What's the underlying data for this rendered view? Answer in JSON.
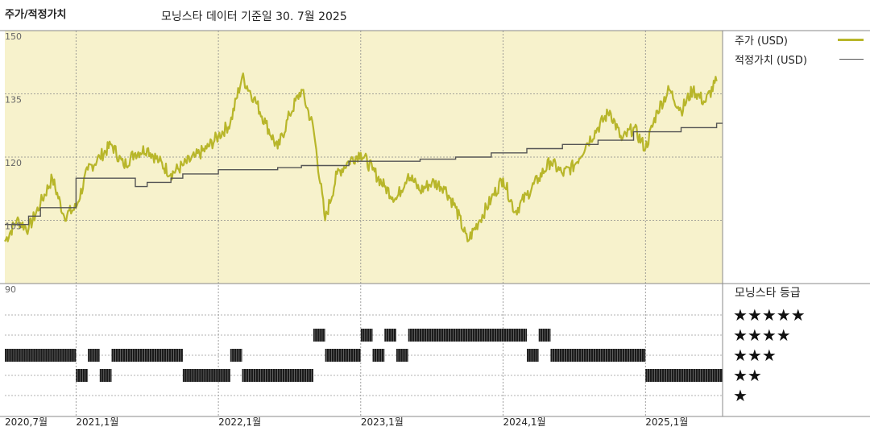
{
  "header": {
    "title": "주가/적정가치",
    "subtitle": "모닝스타 데이터 기준일 30. 7월 2025"
  },
  "legend": {
    "price_label": "주가 (USD)",
    "fair_value_label": "적정가치 (USD)",
    "rating_title": "모닝스타 등급"
  },
  "rating_levels": [
    "★★★★★",
    "★★★★",
    "★★★",
    "★★",
    "★"
  ],
  "colors": {
    "price_line": "#b8b62a",
    "fair_value_line": "#555555",
    "plot_background": "#f7f2cc",
    "rating_bars": "#1a1a1a"
  },
  "chart_data": {
    "type": "line",
    "y_ticks": [
      "150",
      "135",
      "120",
      "105",
      "90"
    ],
    "ylim": [
      90,
      150
    ],
    "x_ticks": [
      "2020,7월",
      "2021,1월",
      "2022,1월",
      "2023,1월",
      "2024,1월",
      "2025,1월"
    ],
    "x_range": [
      "2020-07",
      "2025-07"
    ],
    "series": [
      {
        "name": "주가 (USD)",
        "points": [
          [
            "2020-07",
            100
          ],
          [
            "2020-08",
            105
          ],
          [
            "2020-09",
            103
          ],
          [
            "2020-10",
            109
          ],
          [
            "2020-11",
            115
          ],
          [
            "2020-12",
            106
          ],
          [
            "2021-01",
            108
          ],
          [
            "2021-02",
            117
          ],
          [
            "2021-03",
            120
          ],
          [
            "2021-04",
            123
          ],
          [
            "2021-05",
            118
          ],
          [
            "2021-06",
            121
          ],
          [
            "2021-07",
            122
          ],
          [
            "2021-08",
            119
          ],
          [
            "2021-09",
            116
          ],
          [
            "2021-10",
            118
          ],
          [
            "2021-11",
            120
          ],
          [
            "2021-12",
            122
          ],
          [
            "2022-01",
            125
          ],
          [
            "2022-02",
            128
          ],
          [
            "2022-03",
            139
          ],
          [
            "2022-04",
            134
          ],
          [
            "2022-05",
            128
          ],
          [
            "2022-06",
            122
          ],
          [
            "2022-07",
            130
          ],
          [
            "2022-08",
            136
          ],
          [
            "2022-09",
            127
          ],
          [
            "2022-10",
            105
          ],
          [
            "2022-11",
            116
          ],
          [
            "2022-12",
            119
          ],
          [
            "2023-01",
            121
          ],
          [
            "2023-02",
            117
          ],
          [
            "2023-03",
            113
          ],
          [
            "2023-04",
            110
          ],
          [
            "2023-05",
            116
          ],
          [
            "2023-06",
            112
          ],
          [
            "2023-07",
            114
          ],
          [
            "2023-08",
            113
          ],
          [
            "2023-09",
            108
          ],
          [
            "2023-10",
            100
          ],
          [
            "2023-11",
            105
          ],
          [
            "2023-12",
            110
          ],
          [
            "2024-01",
            115
          ],
          [
            "2024-02",
            107
          ],
          [
            "2024-03",
            111
          ],
          [
            "2024-04",
            115
          ],
          [
            "2024-05",
            119
          ],
          [
            "2024-06",
            116
          ],
          [
            "2024-07",
            118
          ],
          [
            "2024-08",
            123
          ],
          [
            "2024-09",
            127
          ],
          [
            "2024-10",
            131
          ],
          [
            "2024-11",
            124
          ],
          [
            "2024-12",
            127
          ],
          [
            "2025-01",
            122
          ],
          [
            "2025-02",
            131
          ],
          [
            "2025-03",
            136
          ],
          [
            "2025-04",
            131
          ],
          [
            "2025-05",
            136
          ],
          [
            "2025-06",
            133
          ],
          [
            "2025-07",
            138
          ]
        ]
      },
      {
        "name": "적정가치 (USD)",
        "points": [
          [
            "2020-07",
            104
          ],
          [
            "2020-09",
            106
          ],
          [
            "2020-10",
            108
          ],
          [
            "2021-01",
            115
          ],
          [
            "2021-06",
            113
          ],
          [
            "2021-07",
            114
          ],
          [
            "2021-09",
            115
          ],
          [
            "2021-10",
            116
          ],
          [
            "2022-01",
            117
          ],
          [
            "2022-06",
            117.5
          ],
          [
            "2022-08",
            118
          ],
          [
            "2022-12",
            119
          ],
          [
            "2023-06",
            119.5
          ],
          [
            "2023-09",
            120
          ],
          [
            "2023-12",
            121
          ],
          [
            "2024-03",
            122
          ],
          [
            "2024-06",
            123
          ],
          [
            "2024-09",
            124
          ],
          [
            "2024-12",
            126
          ],
          [
            "2025-04",
            127
          ],
          [
            "2025-07",
            128
          ]
        ]
      }
    ],
    "star_rating": [
      [
        "2020-07",
        3
      ],
      [
        "2021-01",
        2
      ],
      [
        "2021-02",
        3
      ],
      [
        "2021-03",
        2
      ],
      [
        "2021-04",
        3
      ],
      [
        "2021-10",
        2
      ],
      [
        "2022-02",
        3
      ],
      [
        "2022-03",
        2
      ],
      [
        "2022-09",
        4
      ],
      [
        "2022-10",
        3
      ],
      [
        "2023-01",
        4
      ],
      [
        "2023-02",
        3
      ],
      [
        "2023-03",
        4
      ],
      [
        "2023-04",
        3
      ],
      [
        "2023-05",
        4
      ],
      [
        "2024-03",
        3
      ],
      [
        "2024-04",
        4
      ],
      [
        "2024-05",
        3
      ],
      [
        "2025-01",
        2
      ]
    ]
  }
}
